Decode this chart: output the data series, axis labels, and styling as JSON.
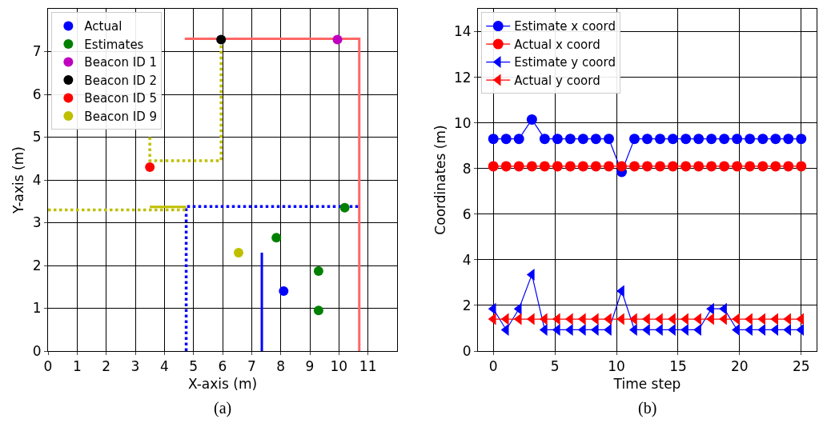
{
  "chart_data": [
    {
      "type": "scatter",
      "xlabel": "X-axis (m)",
      "ylabel": "Y-axis (m)",
      "xlim": [
        0,
        12
      ],
      "xticks": [
        0,
        1,
        2,
        3,
        4,
        5,
        6,
        7,
        8,
        9,
        10,
        11
      ],
      "ylim": [
        0,
        8
      ],
      "yticks": [
        0,
        1,
        2,
        3,
        4,
        5,
        6,
        7
      ],
      "grid": true,
      "legend": "top left",
      "marker": "circle",
      "annotations": [
        "(a)"
      ],
      "series": [
        {
          "type": "line",
          "marker": "none",
          "line_style": "solid",
          "color": "#ff6666",
          "x": [
            4.7,
            10.7,
            10.7
          ],
          "values": [
            7.3,
            7.3,
            0
          ]
        },
        {
          "type": "line",
          "marker": "none",
          "line_style": "dotted",
          "color": "#0000ff",
          "x": [
            4.75,
            4.75,
            10.7
          ],
          "values": [
            0,
            3.38,
            3.38
          ]
        },
        {
          "type": "line",
          "marker": "none",
          "line_style": "solid",
          "color": "#0000ff",
          "x": [
            7.35,
            7.35
          ],
          "values": [
            0,
            2.3
          ]
        },
        {
          "type": "line",
          "marker": "none",
          "line_style": "dotted",
          "color": "#bfbf00",
          "x": [
            0,
            4.75
          ],
          "values": [
            3.3,
            3.3
          ]
        },
        {
          "type": "line",
          "marker": "none",
          "line_style": "solid",
          "color": "#bfbf00",
          "x": [
            3.5,
            4.75
          ],
          "values": [
            3.37,
            3.37
          ]
        },
        {
          "type": "line",
          "marker": "none",
          "line_style": "dotted",
          "color": "#bfbf00",
          "x": [
            3.5,
            3.5,
            5.95,
            5.95
          ],
          "values": [
            5.0,
            4.45,
            4.45,
            7.3
          ]
        },
        {
          "name": "Actual",
          "color": "#0000ff",
          "x": [
            8.1
          ],
          "values": [
            1.4
          ]
        },
        {
          "name": "Estimates",
          "color": "#008000",
          "x": [
            10.2,
            7.85,
            9.3,
            9.3
          ],
          "values": [
            3.35,
            2.65,
            1.87,
            0.95
          ]
        },
        {
          "name": "Beacon ID 1",
          "color": "#bf00bf",
          "x": [
            9.95
          ],
          "values": [
            7.28
          ]
        },
        {
          "name": "Beacon ID 2",
          "color": "#000000",
          "x": [
            5.95
          ],
          "values": [
            7.28
          ]
        },
        {
          "name": "Beacon ID 5",
          "color": "#ff0000",
          "x": [
            3.5
          ],
          "values": [
            4.3
          ]
        },
        {
          "name": "Beacon ID 9",
          "color": "#bfbf00",
          "x": [
            6.55
          ],
          "values": [
            2.3
          ]
        }
      ]
    },
    {
      "type": "line",
      "xlabel": "Time step",
      "ylabel": "Coordinates (m)",
      "xlim": [
        -1.25,
        26.25
      ],
      "xticks": [
        0,
        5,
        10,
        15,
        20,
        25
      ],
      "ylim": [
        0,
        15
      ],
      "yticks": [
        0,
        2,
        4,
        6,
        8,
        10,
        12,
        14
      ],
      "grid": true,
      "legend": "top left",
      "line_style": "solid",
      "annotations": [
        "(b)"
      ],
      "x": [
        0,
        1.04,
        2.08,
        3.13,
        4.17,
        5.21,
        6.25,
        7.29,
        8.33,
        9.38,
        10.42,
        11.46,
        12.5,
        13.54,
        14.58,
        15.63,
        16.67,
        17.71,
        18.75,
        19.79,
        20.83,
        21.88,
        22.92,
        23.96,
        25
      ],
      "series": [
        {
          "name": "Estimate x coord",
          "color": "#0000ff",
          "marker": "circle",
          "values": [
            9.3,
            9.3,
            9.3,
            10.15,
            9.3,
            9.3,
            9.3,
            9.3,
            9.3,
            9.3,
            7.85,
            9.3,
            9.3,
            9.3,
            9.3,
            9.3,
            9.3,
            9.3,
            9.3,
            9.3,
            9.3,
            9.3,
            9.3,
            9.3,
            9.3
          ]
        },
        {
          "name": "Actual x coord",
          "color": "#ff0000",
          "marker": "circle",
          "values": [
            8.1,
            8.1,
            8.1,
            8.1,
            8.1,
            8.1,
            8.1,
            8.1,
            8.1,
            8.1,
            8.1,
            8.1,
            8.1,
            8.1,
            8.1,
            8.1,
            8.1,
            8.1,
            8.1,
            8.1,
            8.1,
            8.1,
            8.1,
            8.1,
            8.1
          ]
        },
        {
          "name": "Estimate y coord",
          "color": "#0000ff",
          "marker": "triangle",
          "values": [
            1.85,
            0.93,
            1.85,
            3.35,
            0.93,
            0.93,
            0.93,
            0.93,
            0.93,
            0.93,
            2.63,
            0.93,
            0.93,
            0.93,
            0.93,
            0.93,
            0.93,
            1.85,
            1.85,
            0.93,
            0.93,
            0.93,
            0.93,
            0.93,
            0.93
          ]
        },
        {
          "name": "Actual y coord",
          "color": "#ff0000",
          "marker": "triangle",
          "values": [
            1.4,
            1.4,
            1.4,
            1.4,
            1.4,
            1.4,
            1.4,
            1.4,
            1.4,
            1.4,
            1.4,
            1.4,
            1.4,
            1.4,
            1.4,
            1.4,
            1.4,
            1.4,
            1.4,
            1.4,
            1.4,
            1.4,
            1.4,
            1.4,
            1.4
          ]
        }
      ]
    }
  ]
}
